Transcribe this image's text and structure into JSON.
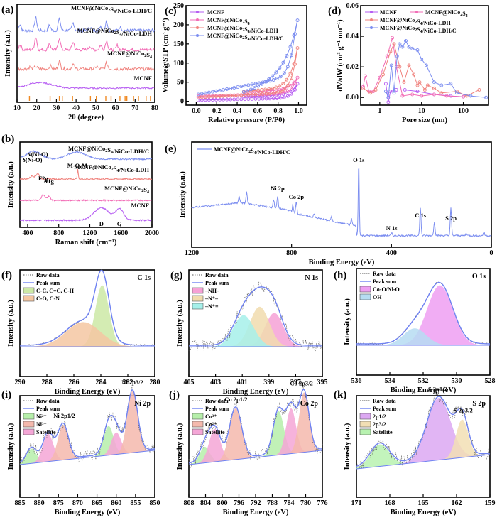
{
  "figure": {
    "panel_labels": [
      "(a)",
      "(b)",
      "(c)",
      "(d)",
      "(e)",
      "(f)",
      "(g)",
      "(h)",
      "(i)",
      "(j)",
      "(k)"
    ]
  },
  "colors": {
    "mcnf": "#b65cf2",
    "nico2s4": "#f26bb5",
    "ldh": "#f0837e",
    "ldhc": "#7b8df0",
    "ref_ticks": "#f08a24",
    "raw": "#555555",
    "peak_sum": "#6f82f2"
  },
  "chart_data": [
    {
      "id": "a",
      "type": "line",
      "title": "",
      "xlabel": "2θ (degree)",
      "ylabel": "Intensity (a.u.)",
      "xlim": [
        10,
        80
      ],
      "xticks": [
        10,
        20,
        30,
        40,
        50,
        60,
        70,
        80
      ],
      "series": [
        {
          "name": "MCNF@NiCo2S4/NiCo-LDH/C",
          "color": "#7b8df0",
          "offset": 3,
          "peaks": [
            [
              11.5,
              0.5
            ],
            [
              19.5,
              1.0
            ],
            [
              26.5,
              0.4
            ],
            [
              31.5,
              0.9
            ],
            [
              38.5,
              0.6
            ],
            [
              47,
              0.3
            ],
            [
              52.5,
              0.35
            ],
            [
              55.5,
              0.7
            ],
            [
              62.5,
              0.3
            ]
          ]
        },
        {
          "name": "MCNF@NiCo2S4/NiCo-LDH",
          "color": "#f26bb5",
          "offset": 2,
          "peaks": [
            [
              11.5,
              0.4
            ],
            [
              19.5,
              1.0
            ],
            [
              26.5,
              0.5
            ],
            [
              31.5,
              0.9
            ],
            [
              38.5,
              0.6
            ],
            [
              47,
              0.3
            ],
            [
              52.5,
              0.35
            ],
            [
              55.5,
              0.7
            ],
            [
              61,
              0.35
            ]
          ]
        },
        {
          "name": "MCNF@NiCo2S4",
          "color": "#f0837e",
          "offset": 1,
          "peaks": [
            [
              16.5,
              0.15
            ],
            [
              19.5,
              0.2
            ],
            [
              27,
              0.25
            ],
            [
              31.5,
              0.6
            ],
            [
              38.5,
              0.35
            ],
            [
              50.5,
              0.2
            ],
            [
              55.5,
              0.45
            ]
          ]
        },
        {
          "name": "MCNF",
          "color": "#b65cf2",
          "offset": 0,
          "peaks": [
            [
              21.5,
              0.45
            ]
          ]
        }
      ],
      "reference_ticks": [
        16.3,
        26.8,
        31.5,
        33.0,
        38.2,
        47.3,
        50.3,
        55.1,
        57.8,
        62.3,
        64.9,
        65.8,
        69.2,
        71.7,
        75.6,
        77.8
      ]
    },
    {
      "id": "b",
      "type": "line",
      "xlabel": "Raman shift (cm⁻¹)",
      "ylabel": "Intensity (a.u.)",
      "xlim": [
        300,
        2000
      ],
      "xticks": [
        400,
        800,
        1200,
        1600,
        2000
      ],
      "series": [
        {
          "name": "MCNF@NiCo2S4/NiCo-LDH/C",
          "color": "#7b8df0",
          "offset": 3
        },
        {
          "name": "MCNF@NiCo2S4/NiCo-LDH",
          "color": "#f0837e",
          "offset": 2
        },
        {
          "name": "MCNF@NiCo2S4",
          "color": "#f26bb5",
          "offset": 1
        },
        {
          "name": "MCNF",
          "color": "#b65cf2",
          "offset": 0
        }
      ],
      "annotations": [
        {
          "text": "δ(Ni-O)",
          "x": 460
        },
        {
          "text": "ν(Ni-O)",
          "x": 535
        },
        {
          "text": "M-O-M",
          "x": 1040
        },
        {
          "text": "F2g",
          "x": 600
        },
        {
          "text": "A1g",
          "x": 670
        },
        {
          "text": "D",
          "x": 1350
        },
        {
          "text": "G",
          "x": 1580
        }
      ]
    },
    {
      "id": "c",
      "type": "line",
      "xlabel": "Relative pressure (P/P0)",
      "ylabel": "Volume@STP (cm³ g⁻¹)",
      "xlim": [
        -0.1,
        1.08
      ],
      "ylim": [
        -10,
        250
      ],
      "xticks": [
        0.0,
        0.2,
        0.4,
        0.6,
        0.8,
        1.0
      ],
      "yticks": [
        0,
        50,
        100,
        150,
        200,
        250
      ],
      "legend": "top-left",
      "series": [
        {
          "name": "MCNF",
          "color": "#b65cf2",
          "adsorption_start": 3,
          "adsorption_max": 45,
          "desorption_mid": 12
        },
        {
          "name": "MCNF@NiCo2S4",
          "color": "#f26bb5",
          "adsorption_start": 13,
          "adsorption_max": 62,
          "desorption_mid": 26
        },
        {
          "name": "MCNF@NiCo2S4/NiCo-LDH",
          "color": "#f0837e",
          "adsorption_start": 10,
          "adsorption_max": 150,
          "desorption_mid": 33
        },
        {
          "name": "MCNF@NiCo2S4/NiCo-LDH/C",
          "color": "#7b8df0",
          "adsorption_start": 17,
          "adsorption_max": 228,
          "desorption_mid": 100
        }
      ]
    },
    {
      "id": "d",
      "type": "line",
      "xscale": "log",
      "xlabel": "Pore size (nm)",
      "ylabel": "dV/dW (cm³ g⁻¹ nm⁻¹)",
      "xlim": [
        0.35,
        400
      ],
      "ylim": [
        -0.005,
        0.06
      ],
      "xticks": [
        1,
        10,
        100
      ],
      "yticks": [
        0.0,
        0.02,
        0.04,
        0.06
      ],
      "legend": "top",
      "series": [
        {
          "name": "MCNF",
          "color": "#b65cf2",
          "points": [
            [
              1.4,
              0.009
            ],
            [
              1.6,
              -0.003
            ],
            [
              1.8,
              0.004
            ],
            [
              2.5,
              0.005
            ],
            [
              4,
              0.005
            ],
            [
              8,
              0.004
            ],
            [
              20,
              0.002
            ],
            [
              50,
              0.001
            ],
            [
              100,
              0.0005
            ]
          ]
        },
        {
          "name": "MCNF@NiCo2S4",
          "color": "#f26bb5",
          "points": [
            [
              0.4,
              0.007
            ],
            [
              0.45,
              0.014
            ],
            [
              0.55,
              0.004
            ],
            [
              0.7,
              0.004
            ],
            [
              1,
              0.013
            ],
            [
              1.5,
              0.027
            ],
            [
              2,
              0.039
            ],
            [
              2.5,
              0.02
            ],
            [
              3.5,
              0.001
            ],
            [
              6,
              0.002
            ],
            [
              10,
              0.001
            ],
            [
              20,
              0.002
            ],
            [
              40,
              0.001
            ],
            [
              100,
              0.0005
            ]
          ]
        },
        {
          "name": "MCNF@NiCo2S4/NiCo-LDH",
          "color": "#f0837e",
          "points": [
            [
              0.4,
              0.006
            ],
            [
              0.6,
              0.003
            ],
            [
              0.8,
              0.005
            ],
            [
              1.2,
              0.015
            ],
            [
              1.8,
              0.03
            ],
            [
              2.2,
              0.035
            ],
            [
              3,
              0.02
            ],
            [
              3.8,
              0.01
            ],
            [
              5,
              0.021
            ],
            [
              6.5,
              0.015
            ],
            [
              8,
              0.008
            ],
            [
              9,
              0.01
            ],
            [
              12,
              0.005
            ],
            [
              14,
              0.008
            ],
            [
              20,
              0.006
            ],
            [
              30,
              0.003
            ],
            [
              70,
              0.004
            ],
            [
              120,
              0.001
            ],
            [
              240,
              0.005
            ]
          ]
        },
        {
          "name": "MCNF@NiCo2S4/NiCo-LDH/C",
          "color": "#7b8df0",
          "points": [
            [
              1.4,
              0.004
            ],
            [
              1.6,
              0.0
            ],
            [
              1.9,
              0.021
            ],
            [
              2.2,
              0.003
            ],
            [
              2.6,
              0.027
            ],
            [
              3,
              0.035
            ],
            [
              3.5,
              0.033
            ],
            [
              4.2,
              0.037
            ],
            [
              5,
              0.033
            ],
            [
              6,
              0.032
            ],
            [
              8,
              0.031
            ],
            [
              10,
              0.025
            ],
            [
              13,
              0.021
            ],
            [
              20,
              0.01
            ],
            [
              30,
              0.008
            ],
            [
              50,
              0.009
            ],
            [
              70,
              0.003
            ],
            [
              150,
              0.001
            ],
            [
              350,
              0.0
            ]
          ]
        }
      ]
    },
    {
      "id": "e",
      "type": "line",
      "xlabel": "Binding Energy (eV)",
      "ylabel": "Intensity (a.u.)",
      "xlim": [
        1200,
        0
      ],
      "xticks": [
        1200,
        800,
        400,
        0
      ],
      "legend": "top-left",
      "series": [
        {
          "name": "MCNF@NiCo2S4/NiCo-LDH/C",
          "color": "#7b8df0"
        }
      ],
      "annotations": [
        {
          "text": "O 1s",
          "x": 531
        },
        {
          "text": "Ni 2p",
          "x": 856
        },
        {
          "text": "Co 2p",
          "x": 781
        },
        {
          "text": "N 1s",
          "x": 399
        },
        {
          "text": "C 1s",
          "x": 284
        },
        {
          "text": "S 2p",
          "x": 162
        }
      ]
    },
    {
      "id": "f",
      "type": "area",
      "core_level": "C 1s",
      "xlabel": "Binding Energy (eV)",
      "ylabel": "Intensity (a.u.)",
      "xlim": [
        290,
        280
      ],
      "xticks": [
        290,
        288,
        286,
        284,
        282,
        280
      ],
      "legend": [
        "Raw data",
        "Peak sum",
        "C-C, C=C, C-H",
        "C-O, C-N"
      ],
      "components": [
        {
          "name": "C-C, C=C, C-H",
          "color": "#cde9a6",
          "center": 283.9,
          "fwhm": 1.2,
          "height": 0.8
        },
        {
          "name": "C-O, C-N",
          "color": "#f5c7a2",
          "center": 285.3,
          "fwhm": 3.0,
          "height": 0.32
        }
      ]
    },
    {
      "id": "g",
      "type": "area",
      "core_level": "N 1s",
      "xlabel": "Binding Energy (eV)",
      "ylabel": "Intensity (a.u.)",
      "xlim": [
        405,
        395
      ],
      "xticks": [
        405,
        403,
        401,
        399,
        397,
        395
      ],
      "legend": [
        "Raw data",
        "Peak sum",
        "–NH–",
        "–N⁺–",
        "–N⁺="
      ],
      "components": [
        {
          "name": "–NH–",
          "color": "#f6a1d6",
          "center": 398.6,
          "fwhm": 1.6,
          "height": 0.44
        },
        {
          "name": "–N⁺–",
          "color": "#f1dcae",
          "center": 399.7,
          "fwhm": 1.7,
          "height": 0.52
        },
        {
          "name": "–N⁺=",
          "color": "#a6f0ea",
          "center": 400.9,
          "fwhm": 1.8,
          "height": 0.41
        }
      ]
    },
    {
      "id": "h",
      "type": "area",
      "core_level": "O 1s",
      "xlabel": "Binding Energy (eV)",
      "ylabel": "Intensity (a.u.)",
      "xlim": [
        536,
        528
      ],
      "xticks": [
        536,
        534,
        532,
        530,
        528
      ],
      "legend": [
        "Raw data",
        "Peak sum",
        "Co-O/Ni-O",
        "OH"
      ],
      "components": [
        {
          "name": "Co-O/Ni-O",
          "color": "#ee9ff2",
          "center": 531.0,
          "fwhm": 1.8,
          "height": 0.78
        },
        {
          "name": "OH",
          "color": "#b6dcf2",
          "center": 532.5,
          "fwhm": 1.6,
          "height": 0.22
        }
      ]
    },
    {
      "id": "i",
      "type": "area",
      "core_level": "Ni 2p",
      "xlabel": "Binding Energy (eV)",
      "ylabel": "Intensity (a.u.)",
      "xlim": [
        885,
        850
      ],
      "xticks": [
        885,
        880,
        875,
        870,
        865,
        860,
        855,
        850
      ],
      "legend": [
        "Raw data",
        "Peak sum",
        "Ni²⁺",
        "Ni³⁺",
        "Satellite"
      ],
      "annotations": [
        {
          "text": "Ni 2p1/2",
          "x": 873.5
        },
        {
          "text": "Ni 2p3/2",
          "x": 855.8
        }
      ],
      "components": [
        {
          "name": "Ni²⁺",
          "color": "#b6efaa",
          "center": 882.0,
          "fwhm": 3.0,
          "height": 0.2
        },
        {
          "name": "Satellite",
          "color": "#f4a6d6",
          "center": 877.7,
          "fwhm": 3.2,
          "height": 0.38
        },
        {
          "name": "Ni³⁺",
          "color": "#f4b9ad",
          "center": 873.8,
          "fwhm": 3.2,
          "height": 0.48
        },
        {
          "name": "Ni²⁺",
          "color": "#b6efaa",
          "center": 862.0,
          "fwhm": 3.0,
          "height": 0.4
        },
        {
          "name": "Satellite",
          "color": "#f4a6d6",
          "center": 860.0,
          "fwhm": 3.0,
          "height": 0.3
        },
        {
          "name": "Ni³⁺",
          "color": "#f4b9ad",
          "center": 855.8,
          "fwhm": 3.2,
          "height": 0.84
        }
      ]
    },
    {
      "id": "j",
      "type": "area",
      "core_level": "Co 2p",
      "xlabel": "Binding Energy (eV)",
      "ylabel": "Intensity (a.u.)",
      "xlim": [
        808,
        776
      ],
      "xticks": [
        808,
        804,
        800,
        796,
        792,
        788,
        784,
        780,
        776
      ],
      "legend": [
        "Raw data",
        "Peak sum",
        "Co³⁺",
        "Co²⁺",
        "Satellite"
      ],
      "annotations": [
        {
          "text": "Co 2p1/2",
          "x": 796.7
        },
        {
          "text": "Co 2p3/2",
          "x": 781
        }
      ],
      "components": [
        {
          "name": "Co³⁺",
          "color": "#b6efaa",
          "center": 804.2,
          "fwhm": 2.8,
          "height": 0.22
        },
        {
          "name": "Satellite",
          "color": "#f4a6d6",
          "center": 801.8,
          "fwhm": 3.2,
          "height": 0.45
        },
        {
          "name": "Co²⁺",
          "color": "#f4b9ad",
          "center": 796.8,
          "fwhm": 3.4,
          "height": 0.7
        },
        {
          "name": "Co³⁺",
          "color": "#b6efaa",
          "center": 786.5,
          "fwhm": 3.0,
          "height": 0.6
        },
        {
          "name": "Satellite",
          "color": "#f4a6d6",
          "center": 783.5,
          "fwhm": 2.8,
          "height": 0.62
        },
        {
          "name": "Co²⁺",
          "color": "#f4b9ad",
          "center": 780.4,
          "fwhm": 2.8,
          "height": 0.82
        }
      ]
    },
    {
      "id": "k",
      "type": "area",
      "core_level": "S 2p",
      "xlabel": "Binding Energy (eV)",
      "ylabel": "Intensity (a.u.)",
      "xlim": [
        171,
        159
      ],
      "xticks": [
        171,
        168,
        165,
        162,
        159
      ],
      "legend": [
        "Raw data",
        "Peak sum",
        "2p1/2",
        "2p3/2",
        "Satellite"
      ],
      "annotations": [
        {
          "text": "S 2p1/2",
          "x": 163.7
        },
        {
          "text": "S 2p3/2",
          "x": 161.4
        }
      ],
      "components": [
        {
          "name": "Satellite",
          "color": "#b8f2b0",
          "center": 168.9,
          "fwhm": 2.0,
          "height": 0.3
        },
        {
          "name": "2p1/2",
          "color": "#dca8f2",
          "center": 163.6,
          "fwhm": 2.5,
          "height": 0.85
        },
        {
          "name": "2p3/2",
          "color": "#f2dfb4",
          "center": 161.5,
          "fwhm": 1.3,
          "height": 0.52
        }
      ]
    }
  ]
}
